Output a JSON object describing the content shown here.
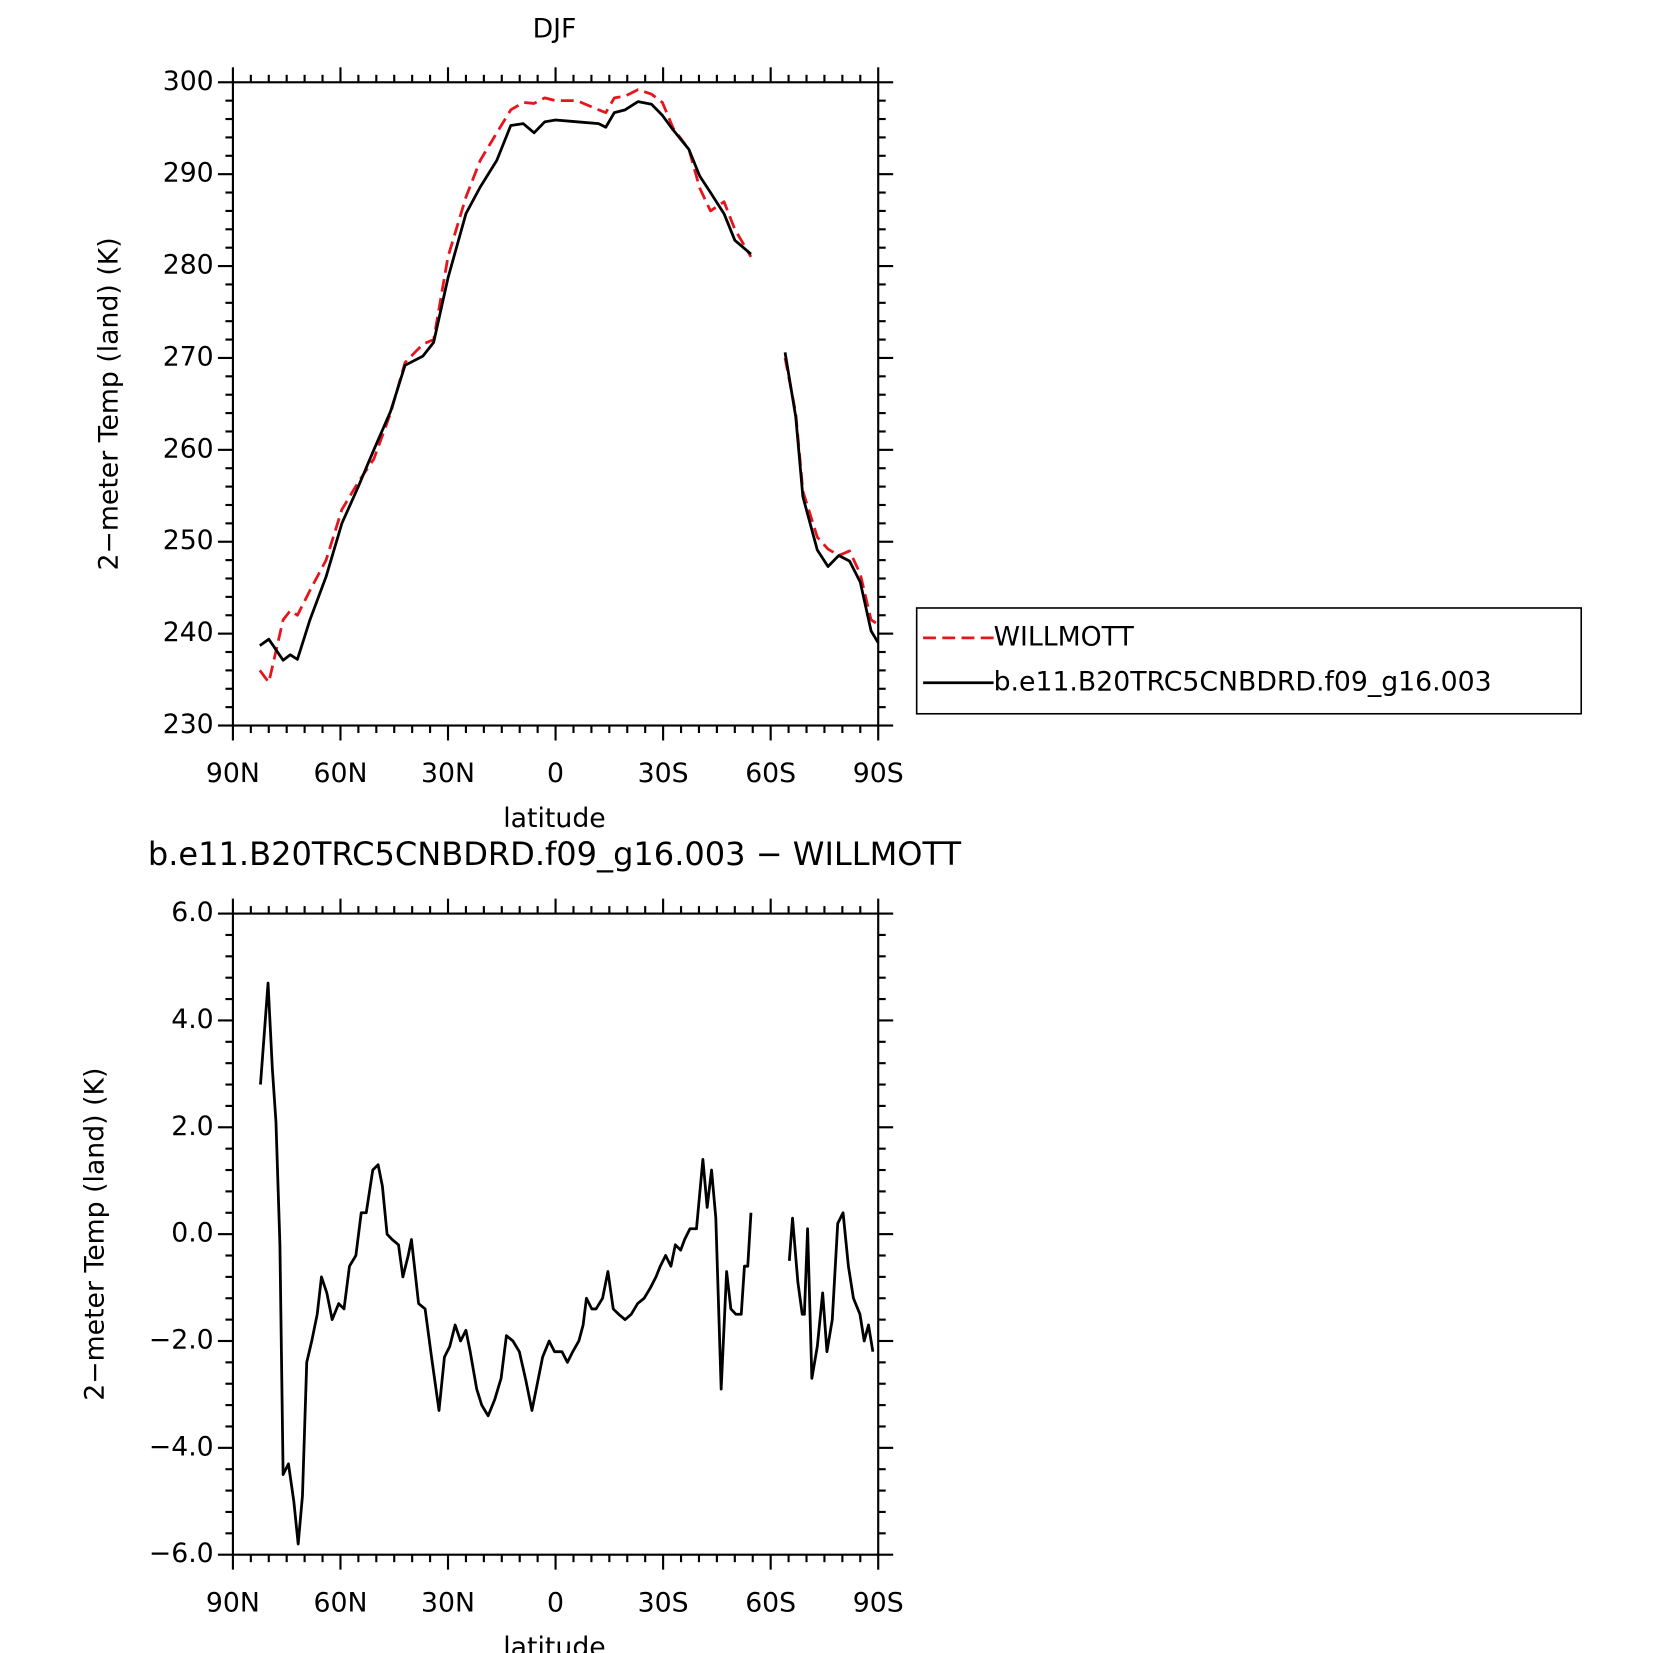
{
  "chart_data": [
    {
      "type": "line",
      "title": "DJF",
      "xlabel": "latitude",
      "ylabel": "2−meter Temp (land) (K)",
      "x": [
        82.5,
        80,
        76,
        74,
        72,
        68.5,
        64,
        59.6,
        55,
        50.7,
        46,
        42,
        37,
        34,
        30,
        25,
        21,
        16.4,
        12.5,
        9,
        6,
        3,
        0,
        -6,
        -12,
        -14,
        -16.4,
        -19.4,
        -23,
        -26.8,
        -29.8,
        -32.8,
        -37.2,
        -40.2,
        -43.2,
        -47,
        -50,
        -54.5,
        null,
        -64,
        -67,
        -69,
        -73,
        -76,
        -79,
        -82,
        -85,
        -88,
        -90
      ],
      "series": [
        {
          "name": "WILLMOTT",
          "color": "#e8141c",
          "dash": true,
          "values": [
            236,
            234.7,
            241.5,
            242.5,
            242,
            244.7,
            248,
            253.5,
            256.5,
            259,
            264,
            269.5,
            271.5,
            272,
            281,
            287.5,
            291.5,
            294.5,
            297,
            297.8,
            297.7,
            298.3,
            298,
            298,
            297,
            296.7,
            298.3,
            298.5,
            299.2,
            298.7,
            297.8,
            295,
            292.7,
            288.5,
            286,
            287,
            284,
            281,
            null,
            270,
            264,
            255.5,
            250.5,
            249.2,
            248.5,
            249,
            246.5,
            241.5,
            241
          ]
        },
        {
          "name": "b.e11.B20TRC5CNBDRD.f09_g16.003",
          "color": "#000000",
          "dash": false,
          "values": [
            238.7,
            239.4,
            237.1,
            237.7,
            237.2,
            241.5,
            246.2,
            252,
            256,
            260,
            264.2,
            269.2,
            270.2,
            271.7,
            278.7,
            285.7,
            288.6,
            291.5,
            295.3,
            295.5,
            294.5,
            295.7,
            295.9,
            295.7,
            295.5,
            295.1,
            296.7,
            297,
            297.9,
            297.6,
            296.4,
            294.8,
            292.7,
            289.8,
            288,
            285.7,
            282.8,
            281.3,
            null,
            270.6,
            263.6,
            254.9,
            249.1,
            247.3,
            248.5,
            247.9,
            245.6,
            240.3,
            239
          ]
        }
      ],
      "xlim": [
        90,
        -90
      ],
      "xticks": [
        {
          "value": 90,
          "label": "90N"
        },
        {
          "value": 60,
          "label": "60N"
        },
        {
          "value": 30,
          "label": "30N"
        },
        0,
        {
          "value": -30,
          "label": "30S"
        },
        {
          "value": -60,
          "label": "60S"
        },
        {
          "value": -90,
          "label": "90S"
        }
      ],
      "ylim": [
        230,
        300
      ],
      "yticks": [
        230,
        240,
        250,
        260,
        270,
        280,
        290,
        300
      ],
      "grid": false,
      "legend": "right"
    },
    {
      "type": "line",
      "title": "b.e11.B20TRC5CNBDRD.f09_g16.003 − WILLMOTT",
      "xlabel": "latitude",
      "ylabel": "2−meter Temp (land) (K)",
      "x": [
        82.3,
        80.2,
        79,
        78,
        76.9,
        76,
        74.5,
        73,
        71.8,
        70.6,
        69.4,
        68,
        66.5,
        65.3,
        63.8,
        62.3,
        60.5,
        59,
        57.5,
        55.7,
        54.2,
        52.8,
        51,
        49.5,
        48.3,
        47,
        45.6,
        43.8,
        42.6,
        41.1,
        40.2,
        38.2,
        36.4,
        34.6,
        32.5,
        31,
        29.5,
        28,
        26.5,
        25,
        23.8,
        22,
        20.6,
        18.8,
        17,
        15.2,
        13.7,
        11.9,
        10.1,
        8.4,
        6.6,
        5.1,
        3.6,
        1.8,
        0.3,
        -1.8,
        -3.3,
        -4.8,
        -6.5,
        -7.7,
        -8.6,
        -10.1,
        -11.3,
        -13.1,
        -14.6,
        -16.1,
        -17.6,
        -19.4,
        -21.1,
        -22.9,
        -24.7,
        -26.5,
        -28,
        -29.2,
        -30.7,
        -32.2,
        -33.4,
        -34.9,
        -36,
        -37.5,
        -39.3,
        -41.1,
        -42.3,
        -43.5,
        -44.7,
        -46.2,
        -47.7,
        -48.9,
        -50.3,
        -51.8,
        -52.7,
        -53.6,
        -54.5,
        null,
        -65.2,
        -66.1,
        -67.6,
        -68.8,
        -69.4,
        -70.3,
        -71.5,
        -73,
        -74.5,
        -75.7,
        -77.2,
        -78.7,
        -80.2,
        -81.7,
        -83.1,
        -84.9,
        -86.1,
        -87.3,
        -88.5
      ],
      "series": [
        {
          "color": "#000000",
          "dash": false,
          "values": [
            2.8,
            4.7,
            3.1,
            2.1,
            -0.2,
            -4.5,
            -4.3,
            -5.0,
            -5.8,
            -4.9,
            -2.4,
            -2.0,
            -1.5,
            -0.8,
            -1.1,
            -1.6,
            -1.3,
            -1.4,
            -0.6,
            -0.4,
            0.4,
            0.4,
            1.2,
            1.3,
            0.9,
            0.0,
            -0.1,
            -0.2,
            -0.8,
            -0.4,
            -0.1,
            -1.3,
            -1.4,
            -2.3,
            -3.3,
            -2.3,
            -2.1,
            -1.7,
            -2.0,
            -1.8,
            -2.2,
            -2.9,
            -3.2,
            -3.4,
            -3.1,
            -2.7,
            -1.9,
            -2.0,
            -2.2,
            -2.7,
            -3.3,
            -2.8,
            -2.3,
            -2.0,
            -2.2,
            -2.2,
            -2.4,
            -2.2,
            -2.0,
            -1.7,
            -1.2,
            -1.4,
            -1.4,
            -1.2,
            -0.7,
            -1.4,
            -1.5,
            -1.6,
            -1.5,
            -1.3,
            -1.2,
            -1.0,
            -0.8,
            -0.6,
            -0.4,
            -0.6,
            -0.2,
            -0.3,
            -0.1,
            0.1,
            0.1,
            1.4,
            0.5,
            1.2,
            0.3,
            -2.9,
            -0.7,
            -1.4,
            -1.5,
            -1.5,
            -0.6,
            -0.6,
            0.4,
            null,
            -0.5,
            0.3,
            -0.9,
            -1.5,
            -1.5,
            0.1,
            -2.7,
            -2.1,
            -1.1,
            -2.2,
            -1.6,
            0.2,
            0.4,
            -0.6,
            -1.2,
            -1.5,
            -2.0,
            -1.7,
            -2.2
          ]
        }
      ],
      "xlim": [
        90,
        -90
      ],
      "xticks": [
        {
          "value": 90,
          "label": "90N"
        },
        {
          "value": 60,
          "label": "60N"
        },
        {
          "value": 30,
          "label": "30N"
        },
        0,
        {
          "value": -30,
          "label": "30S"
        },
        {
          "value": -60,
          "label": "60S"
        },
        {
          "value": -90,
          "label": "90S"
        }
      ],
      "ylim": [
        -6,
        6
      ],
      "yticks": [
        {
          "value": -6,
          "label": "−6.0"
        },
        {
          "value": -4,
          "label": "−4.0"
        },
        {
          "value": -2,
          "label": "−2.0"
        },
        {
          "value": 0,
          "label": "0.0"
        },
        {
          "value": 2,
          "label": "2.0"
        },
        {
          "value": 4,
          "label": "4.0"
        },
        {
          "value": 6,
          "label": "6.0"
        }
      ],
      "grid": false
    }
  ]
}
